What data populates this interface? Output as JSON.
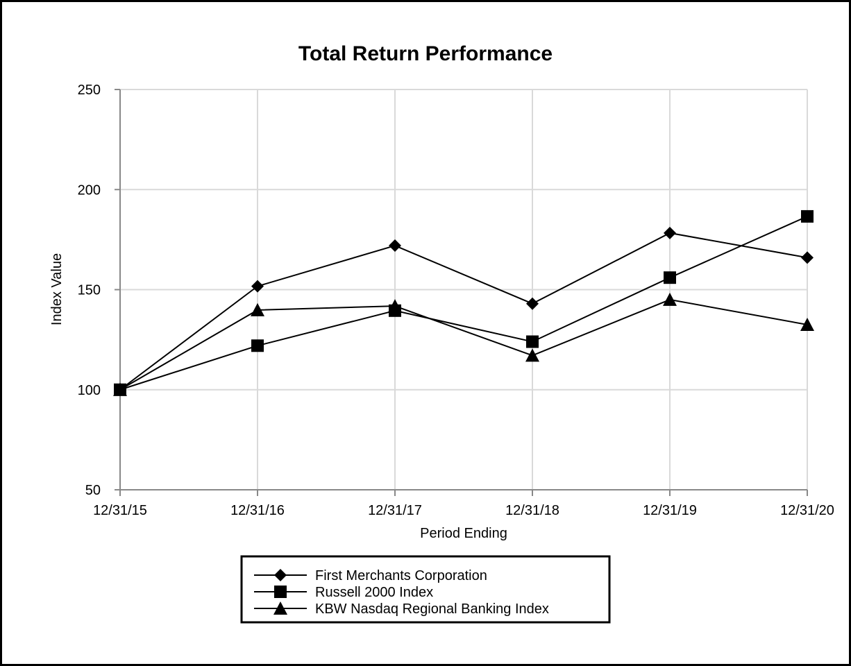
{
  "chart_data": {
    "type": "line",
    "title": "Total Return Performance",
    "xlabel": "Period Ending",
    "ylabel": "Index Value",
    "categories": [
      "12/31/15",
      "12/31/16",
      "12/31/17",
      "12/31/18",
      "12/31/19",
      "12/31/20"
    ],
    "ylim": [
      50,
      250
    ],
    "yticks": [
      50,
      100,
      150,
      200,
      250
    ],
    "grid": true,
    "legend_position": "bottom",
    "series": [
      {
        "name": "First Merchants Corporation",
        "marker": "diamond",
        "color": "#000000",
        "values": [
          100,
          151.7,
          172.0,
          143.0,
          178.3,
          166.0
        ]
      },
      {
        "name": "Russell 2000 Index",
        "marker": "square",
        "color": "#000000",
        "values": [
          100,
          122.0,
          139.5,
          124.0,
          156.0,
          186.6
        ]
      },
      {
        "name": "KBW Nasdaq Regional Banking Index",
        "marker": "triangle",
        "color": "#000000",
        "values": [
          100,
          139.8,
          141.8,
          117.1,
          145.0,
          132.5
        ]
      }
    ]
  }
}
